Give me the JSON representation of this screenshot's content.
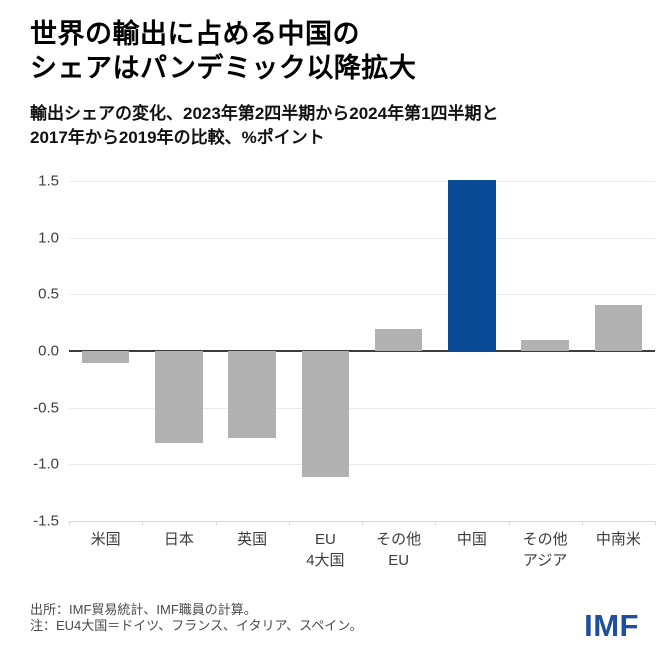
{
  "header": {
    "title_lines": [
      "世界の輸出に占める中国の",
      "シェアはパンデミック以降拡大"
    ],
    "subtitle_lines": [
      "輸出シェアの変化、2023年第2四半期から2024年第1四半期と",
      "2017年から2019年の比較、%ポイント"
    ]
  },
  "chart_data": {
    "type": "bar",
    "title": "世界の輸出に占める中国のシェアはパンデミック以降拡大",
    "subtitle": "輸出シェアの変化、2023年第2四半期から2024年第1四半期と2017年から2019年の比較、%ポイント",
    "unit": "%ポイント",
    "categories": [
      "米国",
      "日本",
      "英国",
      "EU\n4大国",
      "その他\nEU",
      "中国",
      "その他\nアジア",
      "中南米"
    ],
    "values": [
      -0.11,
      -0.81,
      -0.77,
      -1.11,
      0.19,
      1.51,
      0.1,
      0.41
    ],
    "highlight_category": "中国",
    "xlabel": "",
    "ylabel": "",
    "ylim": [
      -1.5,
      1.5
    ],
    "y_ticks": [
      1.5,
      1.0,
      0.5,
      0.0,
      -0.5,
      -1.0,
      -1.5
    ],
    "y_tick_labels": [
      "1.5",
      "1.0",
      "0.5",
      "0.0",
      "-0.5",
      "-1.0",
      "-1.5"
    ],
    "grid": true,
    "legend": "none",
    "bar_color": "#b1b1b1",
    "highlight_color": "#0a4b96"
  },
  "footer": {
    "source": "出所：IMF貿易統計、IMF職員の計算。",
    "note": "注：EU4大国＝ドイツ、フランス、イタリア、スペイン。",
    "logo": "IMF"
  },
  "colors": {
    "accent_blue": "#0a4b96",
    "bar_gray": "#b1b1b1",
    "gridline": "#e9e9e9",
    "zero_line": "#3d3d3d",
    "logo_blue": "#1d4f9e",
    "footer_text": "#4a4a4a"
  }
}
